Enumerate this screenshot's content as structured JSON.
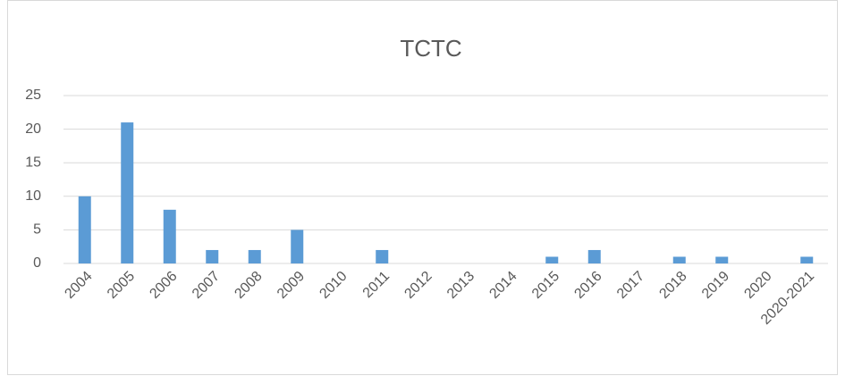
{
  "chart_data": {
    "type": "bar",
    "title": "TCTC",
    "categories": [
      "2004",
      "2005",
      "2006",
      "2007",
      "2008",
      "2009",
      "2010",
      "2011",
      "2012",
      "2013",
      "2014",
      "2015",
      "2016",
      "2017",
      "2018",
      "2019",
      "2020",
      "2020-2021"
    ],
    "values": [
      10,
      21,
      8,
      2,
      2,
      5,
      0,
      2,
      0,
      0,
      0,
      1,
      2,
      0,
      1,
      1,
      0,
      1
    ],
    "color": "#5b9bd5",
    "ylim": [
      0,
      25
    ],
    "yticks": [
      0,
      5,
      10,
      15,
      20,
      25
    ],
    "grid": true
  }
}
